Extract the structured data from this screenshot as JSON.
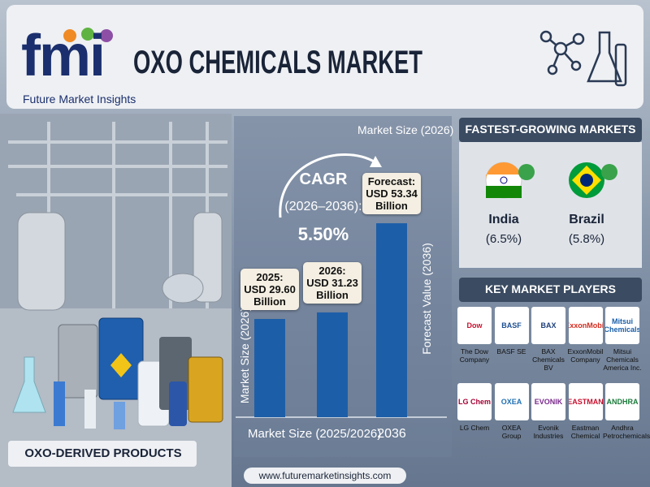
{
  "header": {
    "logo": "fmi",
    "logo_subtitle": "Future Market Insights",
    "title": "OXO CHEMICALS MARKET"
  },
  "products_label": "OXO-DERIVED PRODUCTS",
  "chart_data": {
    "type": "bar",
    "title": "Market Size (2026)",
    "cagr_label": "CAGR",
    "cagr_period": "(2026–2036):",
    "cagr_value": "5.50%",
    "categories": [
      "2025:",
      "2026:",
      "Forecast:"
    ],
    "values": [
      29.6,
      31.23,
      53.34
    ],
    "value_labels": [
      "USD 29.60 Billion",
      "USD 31.23 Billion",
      "USD 53.34 Billion"
    ],
    "color": "#1d5ea8",
    "ylim": [
      0,
      60
    ],
    "ylabel": "Market Size (2026)",
    "y2label": "Forecast Value (2036)",
    "xlabel": "Market Size (2025/2026)",
    "xlabel_forecast": "2036"
  },
  "fastest_growing": {
    "title": "FASTEST-GROWING MARKETS",
    "markets": [
      {
        "name": "India",
        "rate": "(6.5%)"
      },
      {
        "name": "Brazil",
        "rate": "(5.8%)"
      }
    ]
  },
  "key_players": {
    "title": "KEY MARKET PLAYERS",
    "players": [
      {
        "logo": "Dow",
        "name": "The Dow Company"
      },
      {
        "logo": "BASF",
        "name": "BASF SE"
      },
      {
        "logo": "BAX",
        "name": "BAX Chemicals BV"
      },
      {
        "logo": "ExxonMobil",
        "name": "ExxonMobil Company"
      },
      {
        "logo": "Mitsui Chemicals",
        "name": "Mitsui Chemicals America Inc."
      },
      {
        "logo": "LG Chem",
        "name": "LG Chem"
      },
      {
        "logo": "OXEA",
        "name": "OXEA Group"
      },
      {
        "logo": "EVONIK",
        "name": "Evonik Industries"
      },
      {
        "logo": "EASTMAN",
        "name": "Eastman Chemical"
      },
      {
        "logo": "ANDHRA",
        "name": "Andhra Petrochemicals"
      }
    ]
  },
  "footer": "www.futuremarketinsights.com"
}
